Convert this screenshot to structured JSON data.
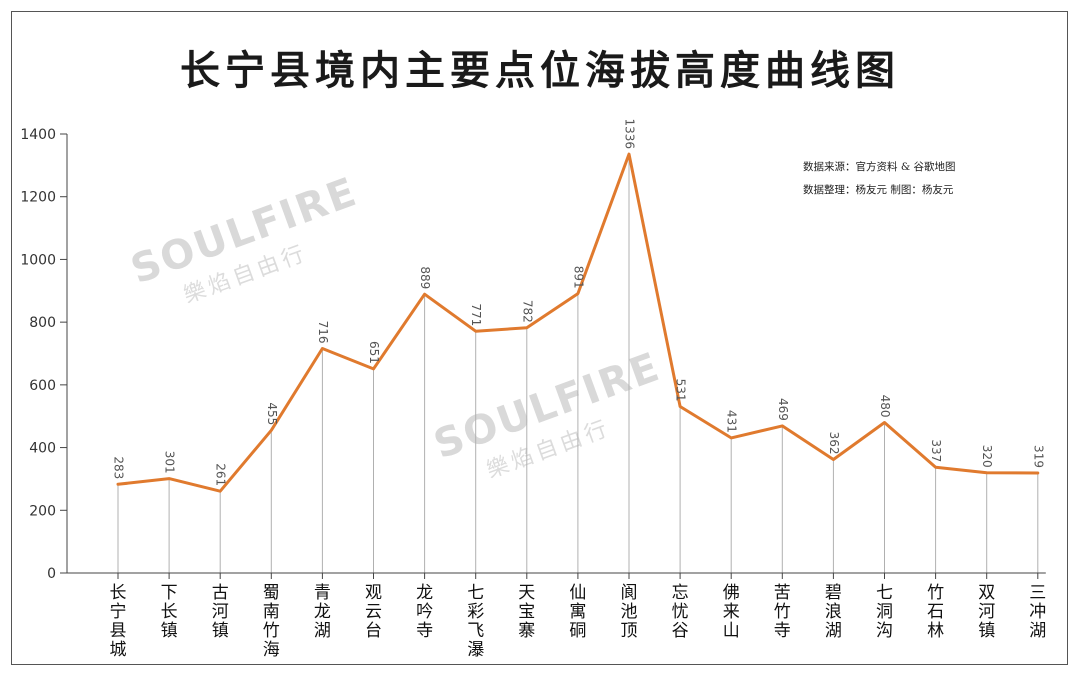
{
  "title": "长宁县境内主要点位海拔高度曲线图",
  "source_lines": [
    "数据来源：官方资料 & 谷歌地图",
    "数据整理：杨友元  制图：杨友元"
  ],
  "watermark": {
    "en": "SOULFIRE",
    "cn": "樂焰自由行"
  },
  "colors": {
    "line": "#E07A2E",
    "axis": "#444444",
    "drop": "#b0b0b0",
    "label": "#555555"
  },
  "chart_data": {
    "type": "line",
    "title": "长宁县境内主要点位海拔高度曲线图",
    "categories": [
      "长宁县城",
      "下长镇",
      "古河镇",
      "蜀南竹海",
      "青龙湖",
      "观云台",
      "龙吟寺",
      "七彩飞瀑",
      "天宝寨",
      "仙寓硐",
      "阆池顶",
      "忘忧谷",
      "佛来山",
      "苦竹寺",
      "碧浪湖",
      "七洞沟",
      "竹石林",
      "双河镇",
      "三冲湖"
    ],
    "values": [
      283,
      301,
      261,
      455,
      716,
      651,
      889,
      771,
      782,
      891,
      1336,
      531,
      431,
      469,
      362,
      480,
      337,
      320,
      319
    ],
    "ylim": [
      0,
      1400
    ],
    "yticks": [
      0,
      200,
      400,
      600,
      800,
      1000,
      1200,
      1400
    ],
    "grid": false,
    "data_labels": true,
    "drop_lines": true
  }
}
